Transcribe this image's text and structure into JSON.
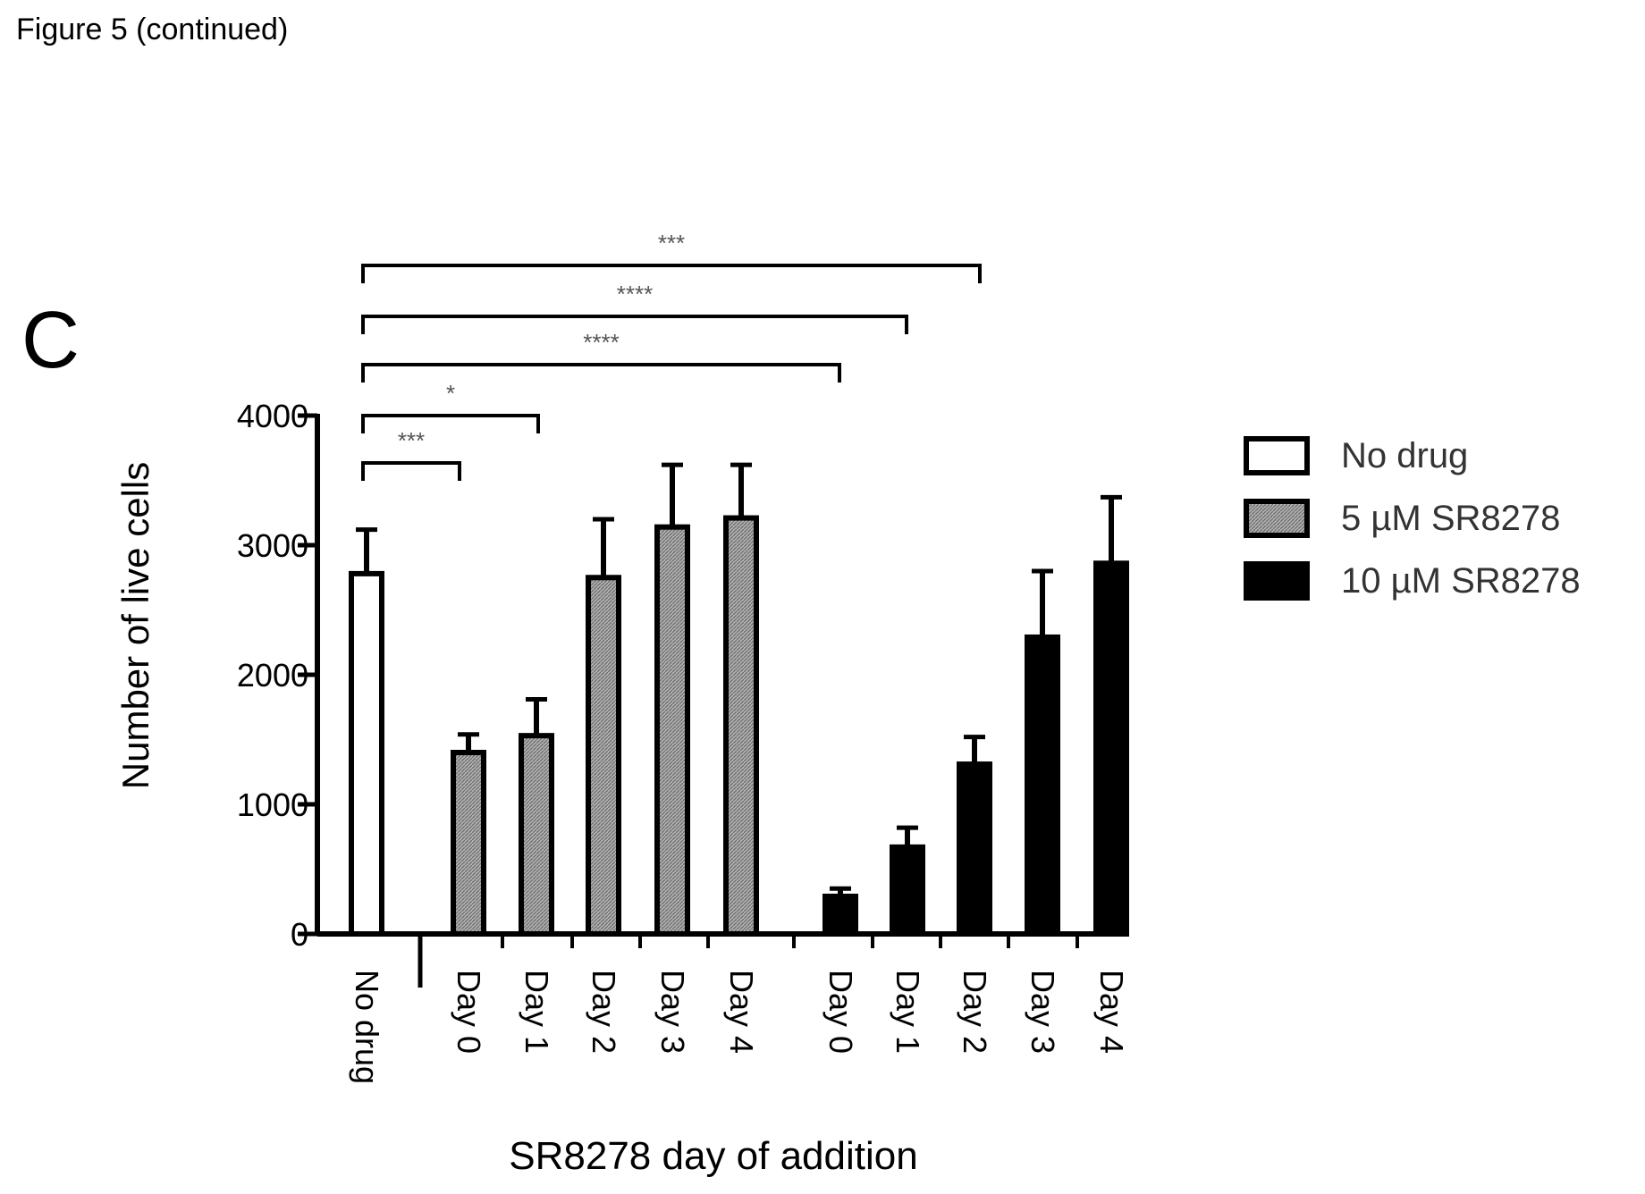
{
  "figure_caption": "Figure 5 (continued)",
  "panel_label": "C",
  "chart_data": {
    "type": "bar",
    "ylabel": "Number of live cells",
    "xlabel": "SR8278 day of addition",
    "ylim": [
      0,
      4000
    ],
    "yticks": [
      0,
      1000,
      2000,
      3000,
      4000
    ],
    "grid": false,
    "legend_position": "right",
    "series": [
      {
        "name": "No drug",
        "color": "#ffffff",
        "categories": [
          "No drug"
        ],
        "values": [
          2780
        ],
        "errors": [
          340
        ]
      },
      {
        "name": "5 µM SR8278",
        "color": "#9a9a9a",
        "categories": [
          "Day 0",
          "Day 1",
          "Day 2",
          "Day 3",
          "Day 4"
        ],
        "values": [
          1400,
          1530,
          2750,
          3140,
          3210
        ],
        "errors": [
          140,
          280,
          450,
          480,
          410
        ]
      },
      {
        "name": "10 µM SR8278",
        "color": "#000000",
        "categories": [
          "Day 0",
          "Day 1",
          "Day 2",
          "Day 3",
          "Day 4"
        ],
        "values": [
          290,
          670,
          1310,
          2290,
          2860
        ],
        "errors": [
          60,
          150,
          210,
          510,
          510
        ]
      }
    ],
    "significance": [
      {
        "from": "No drug",
        "to": "5 µM SR8278 Day 0",
        "label": "***"
      },
      {
        "from": "No drug",
        "to": "5 µM SR8278 Day 1",
        "label": "*"
      },
      {
        "from": "No drug",
        "to": "10 µM SR8278 Day 0",
        "label": "****"
      },
      {
        "from": "No drug",
        "to": "10 µM SR8278 Day 1",
        "label": "****"
      },
      {
        "from": "No drug",
        "to": "10 µM SR8278 Day 2",
        "label": "***"
      }
    ]
  }
}
